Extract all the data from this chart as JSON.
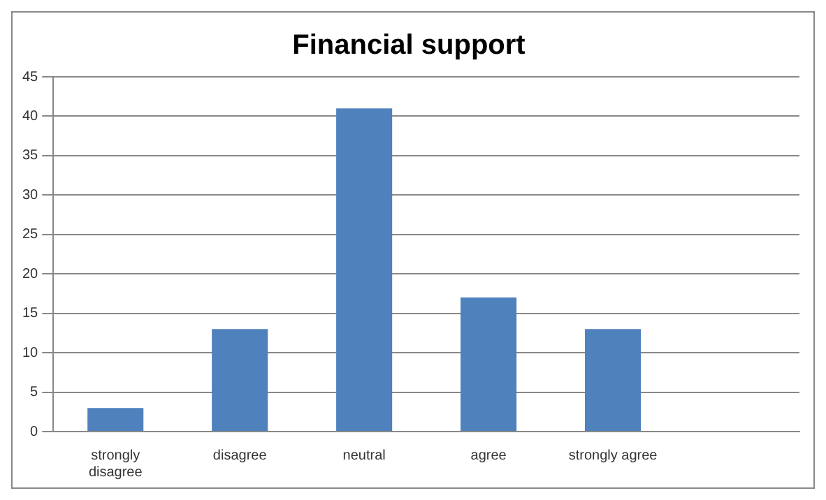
{
  "chart_data": {
    "type": "bar",
    "title": "Financial support",
    "categories": [
      "strongly disagree",
      "disagree",
      "neutral",
      "agree",
      "strongly agree",
      null
    ],
    "values": [
      3,
      13,
      41,
      17,
      13,
      null
    ],
    "color": "#4f81bd",
    "ylim": [
      0,
      45
    ],
    "yticks": [
      0,
      5,
      10,
      15,
      20,
      25,
      30,
      35,
      40,
      45
    ],
    "grid": "y"
  }
}
